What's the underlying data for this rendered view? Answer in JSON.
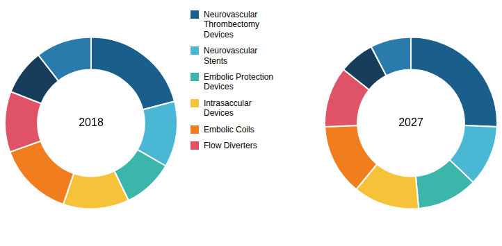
{
  "chart_data": {
    "type": "doughnut",
    "categories": [
      "Neurovascular\nThrombectomy\nDevices",
      "Neurovascular\nStents",
      "Embolic Protection\nDevices",
      "Intrasaccular\nDevices",
      "Embolic Coils",
      "Flow Diverters",
      null,
      null
    ],
    "series": [
      {
        "name": "2018",
        "colors": [
          "#1a5f8c",
          "#4ab8d5",
          "#3cb5aa",
          "#f5c23a",
          "#f07e1e",
          "#e05265",
          "#173d5c",
          "#2a7aab"
        ],
        "values": [
          22,
          13,
          10,
          13,
          15,
          12,
          9,
          11
        ]
      },
      {
        "name": "2027",
        "colors": [
          "#1a5f8c",
          "#4ab8d5",
          "#3cb5aa",
          "#f5c23a",
          "#f07e1e",
          "#e05265",
          "#173d5c",
          "#2a7aab"
        ],
        "values": [
          27,
          12,
          12,
          13,
          14,
          12,
          7,
          8
        ]
      }
    ],
    "legend": "upper center"
  }
}
